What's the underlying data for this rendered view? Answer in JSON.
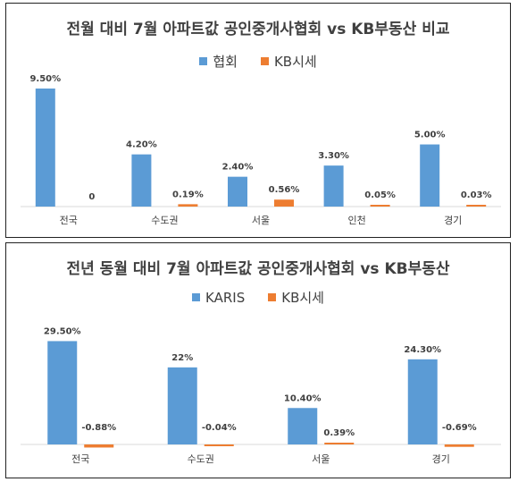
{
  "chart_data": [
    {
      "type": "bar",
      "title": "전월 대비 7월 아파트값 공인중개사협회 vs KB부동산 비교",
      "categories": [
        "전국",
        "수도권",
        "서울",
        "인천",
        "경기"
      ],
      "series": [
        {
          "name": "협회",
          "values": [
            9.5,
            4.2,
            2.4,
            3.3,
            5.0
          ],
          "labels": [
            "9.50%",
            "4.20%",
            "2.40%",
            "3.30%",
            "5.00%"
          ],
          "color": "#5b9bd5"
        },
        {
          "name": "KB시세",
          "values": [
            0,
            0.19,
            0.56,
            0.05,
            0.03
          ],
          "labels": [
            "0",
            "0.19%",
            "0.56%",
            "0.05%",
            "0.03%"
          ],
          "color": "#ed7d31"
        }
      ],
      "ylim": [
        0,
        9.5
      ],
      "grid": false,
      "legend": "top-center"
    },
    {
      "type": "bar",
      "title": "전년 동월 대비 7월 아파트값 공인중개사협회 vs KB부동산",
      "categories": [
        "전국",
        "수도권",
        "서울",
        "경기"
      ],
      "series": [
        {
          "name": "KARIS",
          "values": [
            29.5,
            22,
            10.4,
            24.3
          ],
          "labels": [
            "29.50%",
            "22%",
            "10.40%",
            "24.30%"
          ],
          "color": "#5b9bd5"
        },
        {
          "name": "KB시세",
          "values": [
            -0.88,
            -0.04,
            0.39,
            -0.69
          ],
          "labels": [
            "-0.88%",
            "-0.04%",
            "0.39%",
            "-0.69%"
          ],
          "color": "#ed7d31"
        }
      ],
      "ylim": [
        -0.88,
        29.5
      ],
      "grid": false,
      "legend": "top-center"
    }
  ]
}
